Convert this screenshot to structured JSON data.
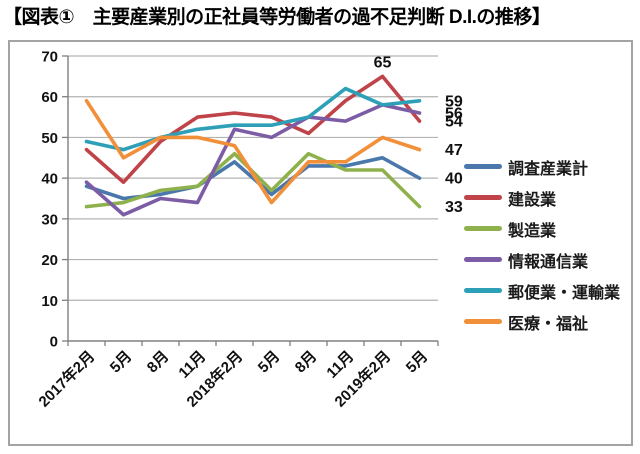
{
  "page": {
    "title": "【図表①　主要産業別の正社員等労働者の過不足判断 D.I.の推移】"
  },
  "chart_data": {
    "type": "line",
    "title": "主要産業別の正社員等労働者の過不足判断 D.I.の推移",
    "categories": [
      "2017年2月",
      "5月",
      "8月",
      "11月",
      "2018年2月",
      "5月",
      "8月",
      "11月",
      "2019年2月",
      "5月"
    ],
    "series": [
      {
        "name": "調査産業計",
        "color": "#4a77ac",
        "values": [
          38,
          35,
          36,
          38,
          44,
          36,
          43,
          43,
          45,
          40
        ]
      },
      {
        "name": "建設業",
        "color": "#bf4348",
        "values": [
          47,
          39,
          49,
          55,
          56,
          55,
          51,
          59,
          65,
          54
        ]
      },
      {
        "name": "製造業",
        "color": "#8fb14d",
        "values": [
          33,
          34,
          37,
          38,
          46,
          37,
          46,
          42,
          42,
          33
        ]
      },
      {
        "name": "情報通信業",
        "color": "#7d5ca6",
        "values": [
          39,
          31,
          35,
          34,
          52,
          50,
          55,
          54,
          58,
          56
        ]
      },
      {
        "name": "郵便業・運輸業",
        "color": "#2da0b7",
        "values": [
          49,
          47,
          50,
          52,
          53,
          53,
          55,
          62,
          58,
          59
        ]
      },
      {
        "name": "医療・福祉",
        "color": "#f2903a",
        "values": [
          59,
          45,
          50,
          50,
          48,
          34,
          44,
          44,
          50,
          47
        ]
      }
    ],
    "ylim": [
      0,
      70
    ],
    "ytick_step": 10,
    "grid": true,
    "legend_position": "right",
    "annotations": {
      "peak_label": {
        "series_index": 1,
        "point_index": 8,
        "text": "65"
      },
      "end_value_labels": [
        59,
        56,
        54,
        47,
        40,
        33
      ]
    }
  }
}
